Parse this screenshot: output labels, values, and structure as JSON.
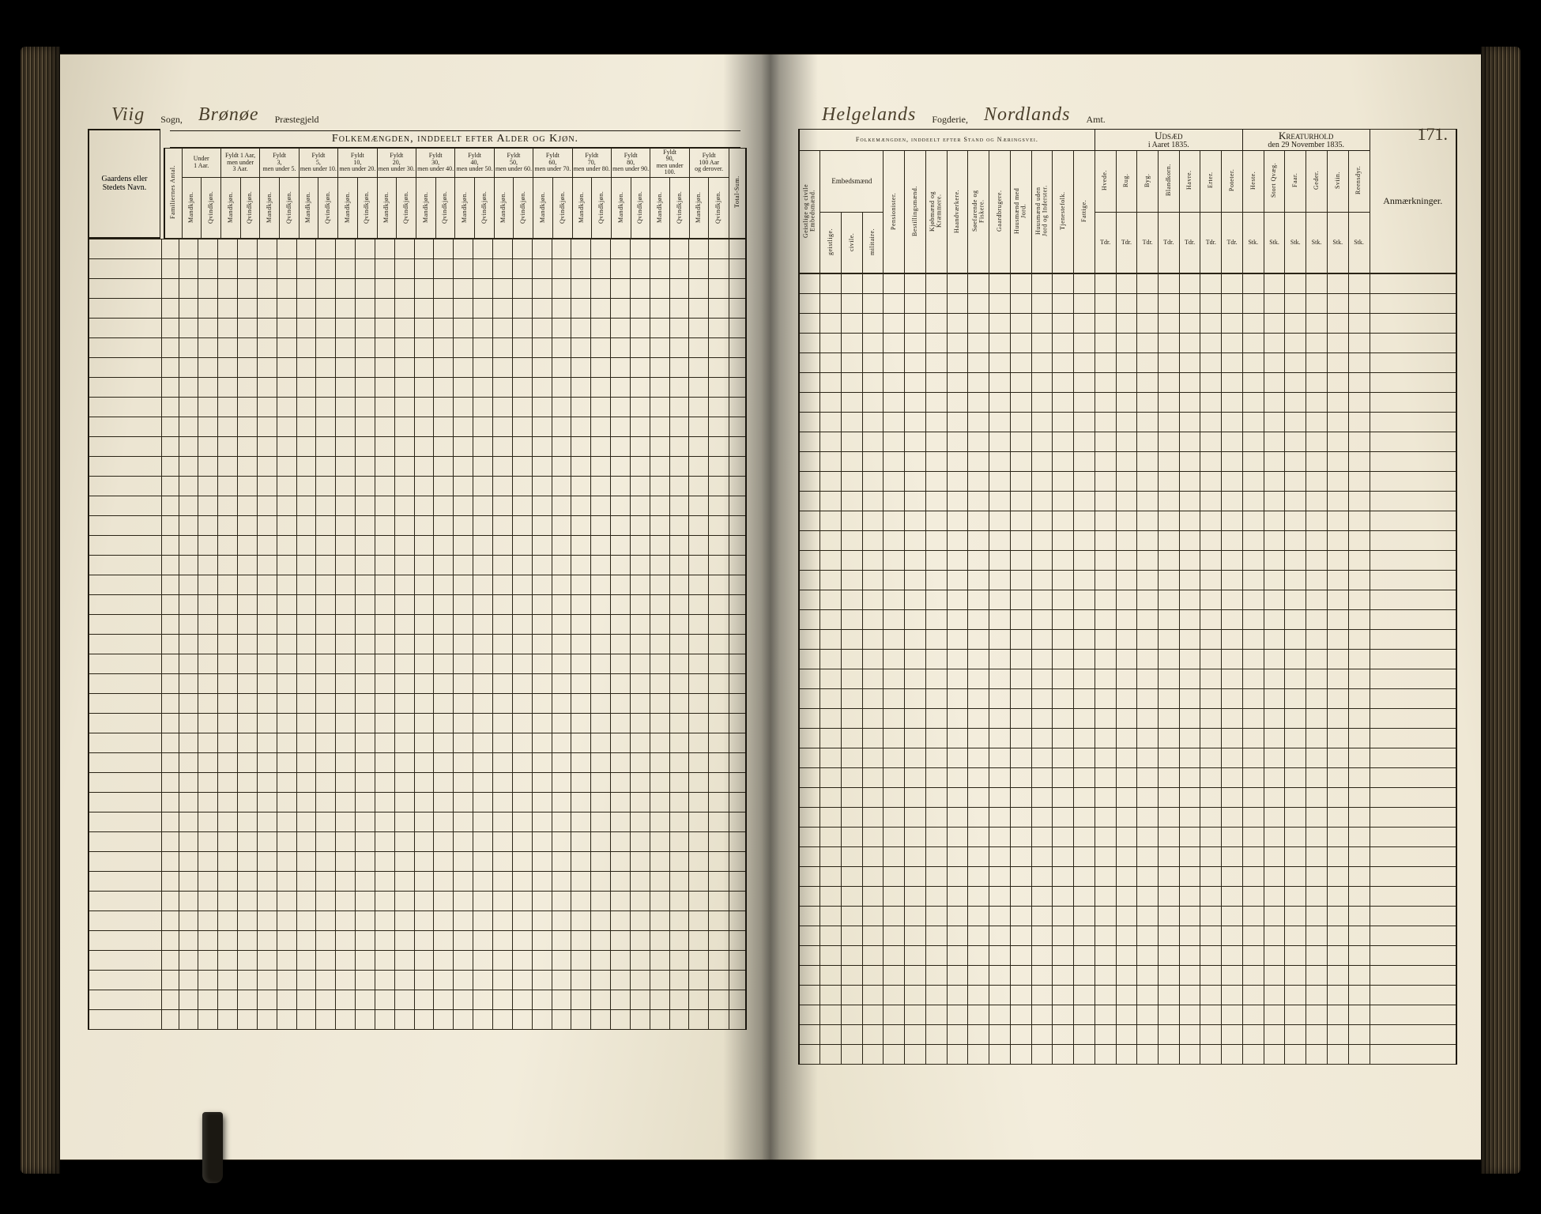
{
  "page_number": "171.",
  "left": {
    "handwriting": {
      "sogn": "Viig",
      "praestegjeld": "Brønøe"
    },
    "printed": {
      "sogn_label": "Sogn,",
      "praestegjeld_label": "Præstegjeld"
    },
    "section_title": "Folkemængden, inddeelt efter Alder og Kjøn.",
    "gaard_label": "Gaardens eller Stedets Navn.",
    "familie_label": "Familiernes Antal.",
    "age_groups": [
      {
        "top": "Under",
        "mid": "1 Aar.",
        "bot": ""
      },
      {
        "top": "Fyldt 1 Aar,",
        "mid": "men under",
        "bot": "3 Aar."
      },
      {
        "top": "Fyldt",
        "mid": "3,",
        "bot": "men under 5."
      },
      {
        "top": "Fyldt",
        "mid": "5,",
        "bot": "men under 10."
      },
      {
        "top": "Fyldt",
        "mid": "10,",
        "bot": "men under 20."
      },
      {
        "top": "Fyldt",
        "mid": "20,",
        "bot": "men under 30."
      },
      {
        "top": "Fyldt",
        "mid": "30,",
        "bot": "men under 40."
      },
      {
        "top": "Fyldt",
        "mid": "40,",
        "bot": "men under 50."
      },
      {
        "top": "Fyldt",
        "mid": "50,",
        "bot": "men under 60."
      },
      {
        "top": "Fyldt",
        "mid": "60,",
        "bot": "men under 70."
      },
      {
        "top": "Fyldt",
        "mid": "70,",
        "bot": "men under 80."
      },
      {
        "top": "Fyldt",
        "mid": "80,",
        "bot": "men under 90."
      },
      {
        "top": "Fyldt",
        "mid": "90,",
        "bot": "men under 100."
      },
      {
        "top": "Fyldt",
        "mid": "100 Aar",
        "bot": "og derover."
      }
    ],
    "sex_labels": {
      "m": "Mandkjøn.",
      "q": "Qvindkjøn."
    },
    "total_label": "Total-Sum."
  },
  "right": {
    "handwriting": {
      "fogderi": "Helgelands",
      "amt": "Nordlands"
    },
    "printed": {
      "fogderi_label": "Fogderie,",
      "amt_label": "Amt."
    },
    "section1_title": "Folkemængden, inddeelt efter Stand og Næringsvei.",
    "section2_title": "Udsæd",
    "section2_sub": "i Aaret 1835.",
    "section3_title": "Kreaturhold",
    "section3_sub": "den 29 November 1835.",
    "remarks_title": "Anmærkninger.",
    "stand_cols": [
      "Geistlige og civile Embedsmænd.",
      "Embedsmænd",
      "Pensionister.",
      "Bestillingsmænd.",
      "Kjøbmænd og Kræmmere.",
      "Haandværkere.",
      "Søefarende og Fiskere.",
      "Gaardbrugere.",
      "Huusmænd med Jord.",
      "Huusmænd uden Jord og Inderster.",
      "Tjenestefolk.",
      "Fattige."
    ],
    "stand_sub": {
      "g": "geistlige.",
      "c": "civile.",
      "m": "militaire."
    },
    "udsad_cols": [
      "Hvede.",
      "Rug.",
      "Byg.",
      "Blandkorn.",
      "Havre.",
      "Erter.",
      "Poteter."
    ],
    "udsad_unit": "Tdr.",
    "kreatur_cols": [
      "Heste.",
      "Stort Qvæg.",
      "Faar.",
      "Geder.",
      "Sviin.",
      "Reensdyr."
    ],
    "kreatur_unit": "Stk."
  },
  "body_rows": 40,
  "style": {
    "paper": "#f2ecdb",
    "ink": "#1f1a10",
    "rule": "#2a2416",
    "hand_ink": "#4a3f2b",
    "font_header_pt": 14,
    "font_cell_pt": 8
  }
}
